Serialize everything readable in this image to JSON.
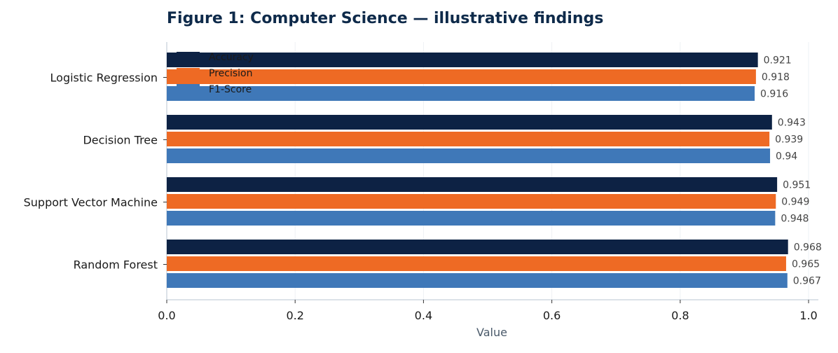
{
  "page": {
    "title": "Figure 1: Computer Science — illustrative findings"
  },
  "chart_data": {
    "type": "bar",
    "orientation": "horizontal",
    "title": "Figure 1: Computer Science — illustrative findings",
    "xlabel": "Value",
    "ylabel": "",
    "xlim": [
      0,
      1.0
    ],
    "xticks": [
      "0.0",
      "0.2",
      "0.4",
      "0.6",
      "0.8",
      "1.0"
    ],
    "grid": "vertical",
    "legend_position": "top-left",
    "categories": [
      "Logistic Regression",
      "Decision Tree",
      "Support Vector Machine",
      "Random Forest"
    ],
    "series": [
      {
        "name": "Accuracy",
        "color": "#0d2244",
        "values": [
          0.921,
          0.943,
          0.951,
          0.968
        ],
        "labels": [
          "0.921",
          "0.943",
          "0.951",
          "0.968"
        ]
      },
      {
        "name": "Precision",
        "color": "#ee6a24",
        "values": [
          0.918,
          0.939,
          0.949,
          0.965
        ],
        "labels": [
          "0.918",
          "0.939",
          "0.949",
          "0.965"
        ]
      },
      {
        "name": "F1-Score",
        "color": "#3f78b8",
        "values": [
          0.916,
          0.94,
          0.948,
          0.967
        ],
        "labels": [
          "0.916",
          "0.94",
          "0.948",
          "0.967"
        ]
      }
    ]
  }
}
